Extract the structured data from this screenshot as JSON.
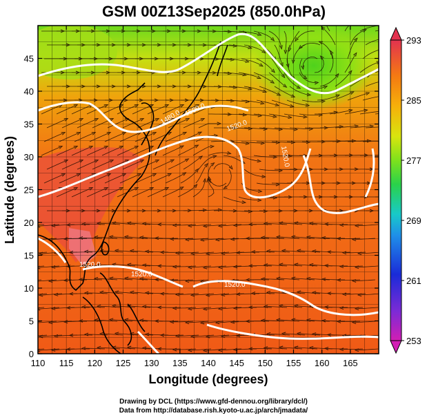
{
  "title": "GSM 00Z13Sep2025 (850.0hPa)",
  "x_axis": {
    "label": "Longitude (degrees)",
    "ticks": [
      "110",
      "115",
      "120",
      "125",
      "130",
      "135",
      "140",
      "145",
      "150",
      "155",
      "160",
      "165"
    ],
    "range": [
      110,
      170
    ]
  },
  "y_axis": {
    "label": "Latitude (degrees)",
    "ticks": [
      "0",
      "5",
      "10",
      "15",
      "20",
      "25",
      "30",
      "35",
      "40",
      "45"
    ],
    "range": [
      0,
      50
    ]
  },
  "colorbar": {
    "ticks": [
      "253",
      "261",
      "269",
      "277",
      "285",
      "293"
    ],
    "range": [
      253,
      293
    ],
    "colors": [
      "#d21eb4",
      "#7a2bd6",
      "#1a2bd8",
      "#1f8fe8",
      "#18c9c9",
      "#2ad24a",
      "#7ee21c",
      "#d9e40e",
      "#f6b00a",
      "#f47a12",
      "#ef3e1e",
      "#e3324f"
    ]
  },
  "contour_labels": [
    "1480.0",
    "1500.0",
    "1520.0",
    "1520.0",
    "1520.0",
    "1520.0",
    "1520.0"
  ],
  "credits": {
    "line1": "Drawing by DCL (https://www.gfd-dennou.org/library/dcl/)",
    "line2": "Data from http://database.rish.kyoto-u.ac.jp/arch/jmadata/"
  },
  "colors": {
    "ocean_warm": "#f05a14",
    "cool_north": "#5ad21e",
    "hot_land": "#e8324a",
    "contour": "#ffffff",
    "coast": "#000000"
  }
}
